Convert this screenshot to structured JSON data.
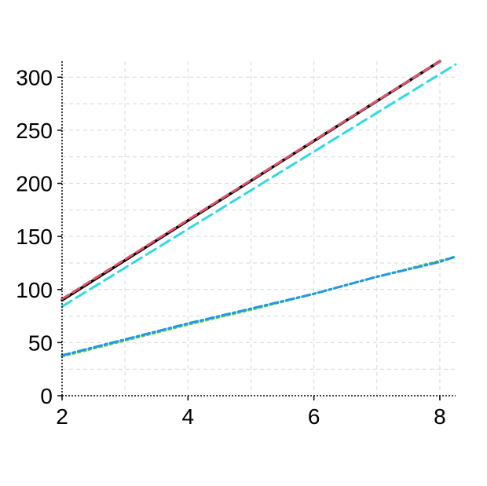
{
  "chart_data": {
    "type": "line",
    "title": "",
    "xlabel": "",
    "ylabel": "",
    "xlim": [
      2,
      8.25
    ],
    "ylim": [
      0,
      315
    ],
    "x_ticks": [
      2,
      4,
      6,
      8
    ],
    "y_ticks": [
      0,
      50,
      100,
      150,
      200,
      250,
      300
    ],
    "x_minor_grid": [
      3,
      5,
      7
    ],
    "y_minor_grid": [
      25,
      75,
      125,
      175,
      225,
      275
    ],
    "grid": true,
    "legend": "none",
    "series": [
      {
        "color": "#000000",
        "dash": "solid",
        "width": 3.5,
        "x": [
          2,
          8
        ],
        "y": [
          90,
          315
        ]
      },
      {
        "color": "#df536b",
        "dash": "10 6",
        "width": 3,
        "x": [
          2,
          8
        ],
        "y": [
          91,
          315
        ]
      },
      {
        "color": "#2ed9e5",
        "dash": "14 7",
        "width": 3,
        "x": [
          2,
          8.25
        ],
        "y": [
          84,
          312
        ]
      },
      {
        "color": "#61d04f",
        "dash": "3 4",
        "width": 3,
        "x": [
          2,
          3,
          4,
          5,
          6,
          7,
          8,
          8.25
        ],
        "y": [
          37,
          52,
          67,
          81,
          96,
          112,
          127,
          131
        ]
      },
      {
        "color": "#2297e6",
        "dash": "10 4 3 4",
        "width": 3,
        "x": [
          2,
          3,
          4,
          5,
          6,
          7,
          8,
          8.25
        ],
        "y": [
          38,
          53,
          68,
          82,
          96,
          112,
          126,
          131
        ]
      }
    ]
  }
}
